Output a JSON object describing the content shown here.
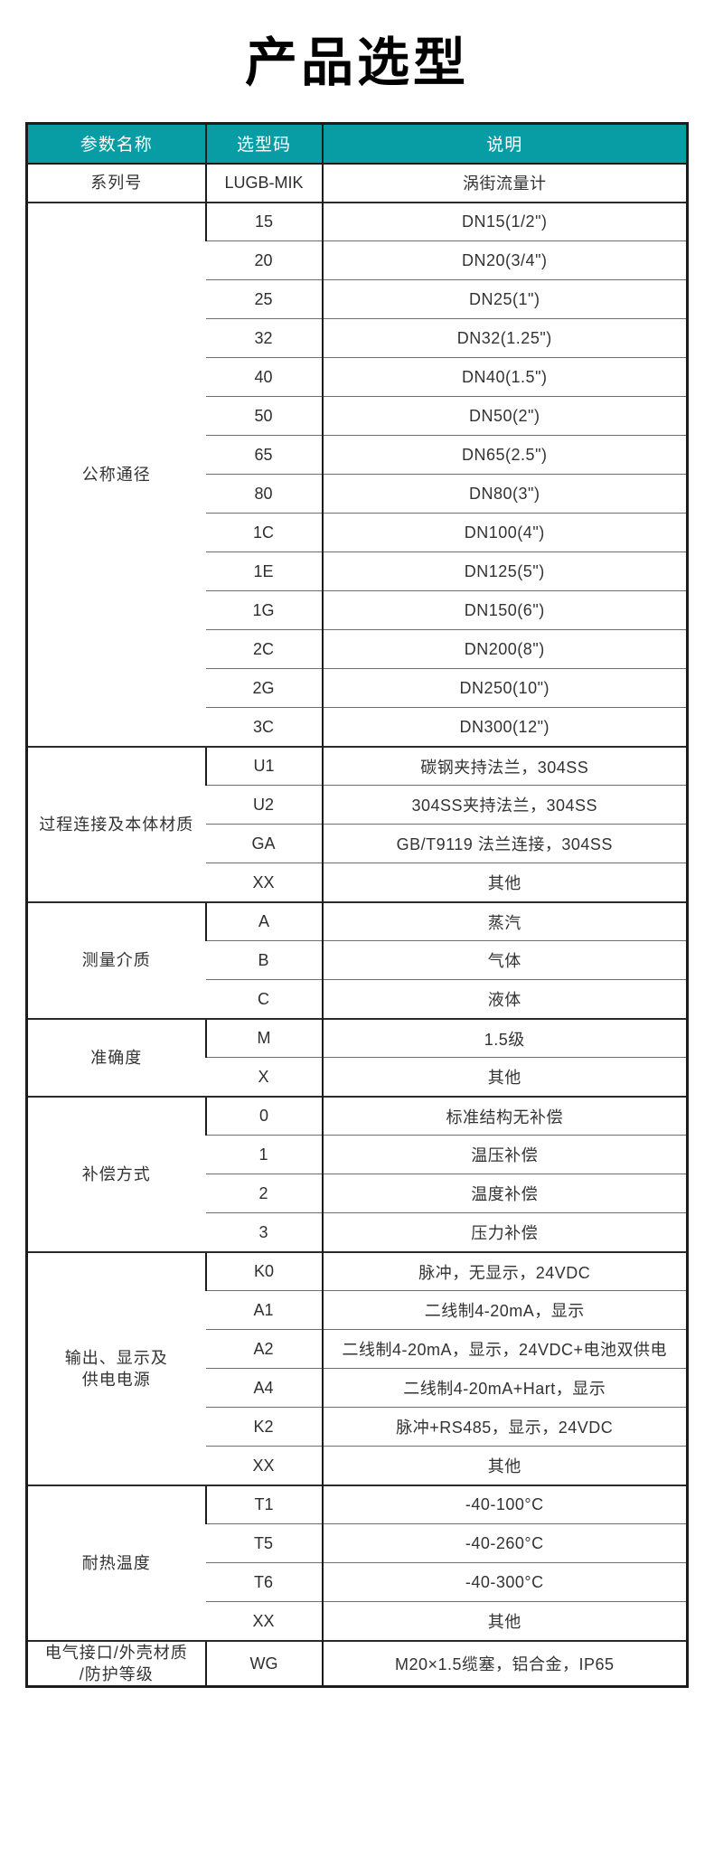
{
  "page_title": "产品选型",
  "colors": {
    "header_bg": "#089da5",
    "header_text": "#ffffff",
    "border_dark": "#1c1c1c",
    "row_line": "#6e6e6e",
    "cell_text": "#333333",
    "title_text": "#000000"
  },
  "table": {
    "headers": [
      "参数名称",
      "选型码",
      "说明"
    ],
    "groups": [
      {
        "name": "系列号",
        "options": [
          {
            "code": "LUGB-MIK",
            "desc": "涡街流量计"
          }
        ]
      },
      {
        "name": "公称通径",
        "options": [
          {
            "code": "15",
            "desc": "DN15(1/2\")"
          },
          {
            "code": "20",
            "desc": "DN20(3/4\")"
          },
          {
            "code": "25",
            "desc": "DN25(1\")"
          },
          {
            "code": "32",
            "desc": "DN32(1.25\")"
          },
          {
            "code": "40",
            "desc": "DN40(1.5\")"
          },
          {
            "code": "50",
            "desc": "DN50(2\")"
          },
          {
            "code": "65",
            "desc": "DN65(2.5\")"
          },
          {
            "code": "80",
            "desc": "DN80(3\")"
          },
          {
            "code": "1C",
            "desc": "DN100(4\")"
          },
          {
            "code": "1E",
            "desc": "DN125(5\")"
          },
          {
            "code": "1G",
            "desc": "DN150(6\")"
          },
          {
            "code": "2C",
            "desc": "DN200(8\")"
          },
          {
            "code": "2G",
            "desc": "DN250(10\")"
          },
          {
            "code": "3C",
            "desc": "DN300(12\")"
          }
        ]
      },
      {
        "name": "过程连接及本体材质",
        "options": [
          {
            "code": "U1",
            "desc": "碳钢夹持法兰，304SS"
          },
          {
            "code": "U2",
            "desc": "304SS夹持法兰，304SS"
          },
          {
            "code": "GA",
            "desc": "GB/T9119 法兰连接，304SS"
          },
          {
            "code": "XX",
            "desc": "其他"
          }
        ]
      },
      {
        "name": "测量介质",
        "options": [
          {
            "code": "A",
            "desc": "蒸汽"
          },
          {
            "code": "B",
            "desc": "气体"
          },
          {
            "code": "C",
            "desc": "液体"
          }
        ]
      },
      {
        "name": "准确度",
        "options": [
          {
            "code": "M",
            "desc": "1.5级"
          },
          {
            "code": "X",
            "desc": "其他"
          }
        ]
      },
      {
        "name": "补偿方式",
        "options": [
          {
            "code": "0",
            "desc": "标准结构无补偿"
          },
          {
            "code": "1",
            "desc": "温压补偿"
          },
          {
            "code": "2",
            "desc": "温度补偿"
          },
          {
            "code": "3",
            "desc": "压力补偿"
          }
        ]
      },
      {
        "name": "输出、显示及\n供电电源",
        "options": [
          {
            "code": "K0",
            "desc": "脉冲，无显示，24VDC"
          },
          {
            "code": "A1",
            "desc": "二线制4-20mA，显示"
          },
          {
            "code": "A2",
            "desc": "二线制4-20mA，显示，24VDC+电池双供电"
          },
          {
            "code": "A4",
            "desc": "二线制4-20mA+Hart，显示"
          },
          {
            "code": "K2",
            "desc": "脉冲+RS485，显示，24VDC"
          },
          {
            "code": "XX",
            "desc": "其他"
          }
        ]
      },
      {
        "name": "耐热温度",
        "options": [
          {
            "code": "T1",
            "desc": "-40-100°C"
          },
          {
            "code": "T5",
            "desc": "-40-260°C"
          },
          {
            "code": "T6",
            "desc": "-40-300°C"
          },
          {
            "code": "XX",
            "desc": "其他"
          }
        ]
      },
      {
        "name": "电气接口/外壳材质\n/防护等级",
        "options": [
          {
            "code": "WG",
            "desc": "M20×1.5缆塞，铝合金，IP65"
          }
        ]
      }
    ]
  }
}
